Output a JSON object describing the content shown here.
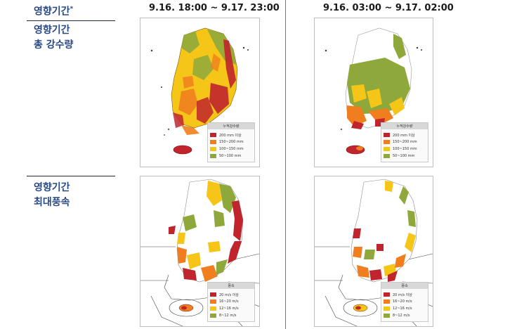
{
  "header": {
    "label": "영향기간",
    "mark": "*"
  },
  "periods": {
    "left": "9.16. 18:00 ~ 9.17. 23:00",
    "right": "9.16. 03:00 ~ 9.17. 02:00"
  },
  "rows": {
    "rain": {
      "line1": "영향기간",
      "line2": "총 강수량"
    },
    "wind": {
      "line1": "영향기간",
      "line2": "최대풍속"
    }
  },
  "colors": {
    "darkred": "#c0242c",
    "orange": "#f07e1e",
    "yellow": "#f5c518",
    "green": "#8ea83b"
  },
  "legends": {
    "rain": {
      "title": "누적강수량",
      "items": [
        {
          "label": "200 mm 이상",
          "color": "#c0242c"
        },
        {
          "label": "150~200 mm",
          "color": "#f07e1e"
        },
        {
          "label": "100~150 mm",
          "color": "#f5c518"
        },
        {
          "label": "50~100 mm",
          "color": "#8ea83b"
        }
      ]
    },
    "wind": {
      "title": "풍속",
      "items": [
        {
          "label": "20 m/s 이상",
          "color": "#c0242c"
        },
        {
          "label": "16~20 m/s",
          "color": "#f07e1e"
        },
        {
          "label": "12~16 m/s",
          "color": "#f5c518"
        },
        {
          "label": "8~12 m/s",
          "color": "#8ea83b"
        }
      ]
    }
  }
}
